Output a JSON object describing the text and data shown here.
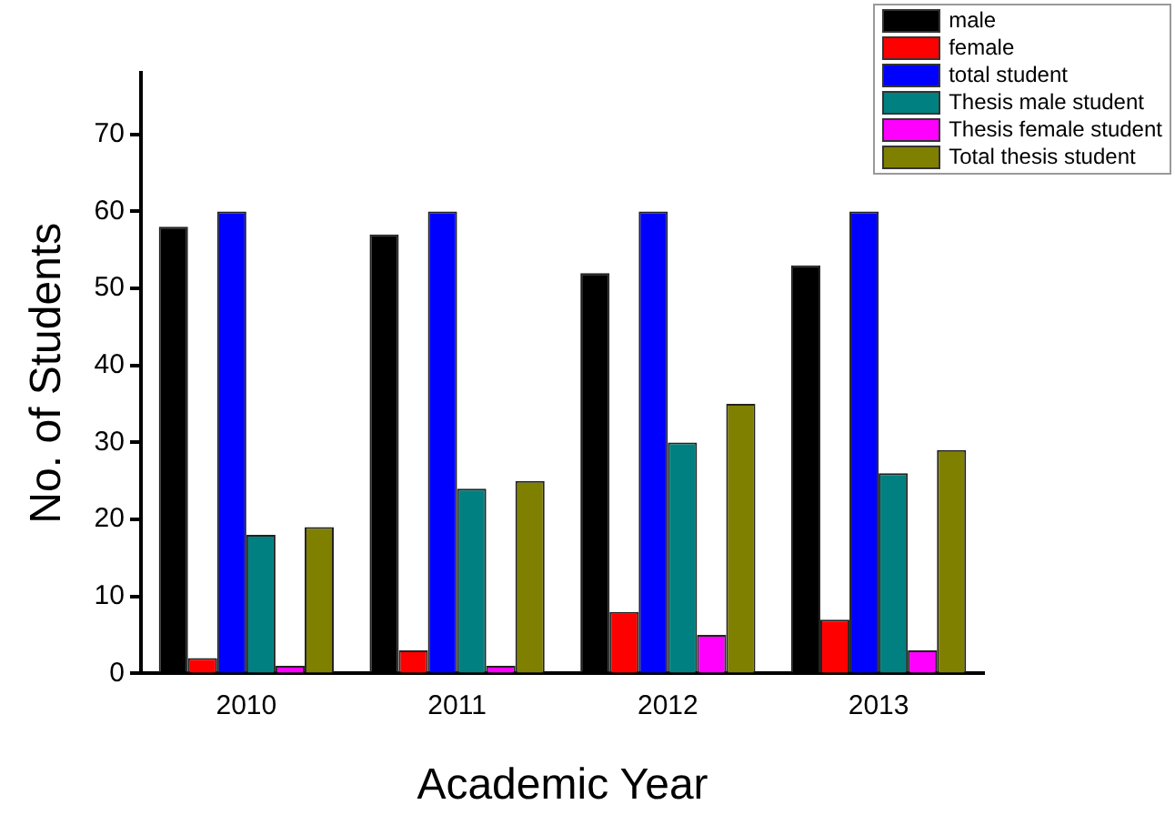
{
  "chart_data": {
    "type": "bar",
    "xlabel": "Academic Year",
    "ylabel": "No. of Students",
    "categories": [
      "2010",
      "2011",
      "2012",
      "2013"
    ],
    "series": [
      {
        "name": "male",
        "color": "#000000",
        "values": [
          58,
          57,
          52,
          53
        ]
      },
      {
        "name": "female",
        "color": "#ff0000",
        "values": [
          2,
          3,
          8,
          7
        ]
      },
      {
        "name": "total student",
        "color": "#0000ff",
        "values": [
          60,
          60,
          60,
          60
        ]
      },
      {
        "name": "Thesis male student",
        "color": "#008080",
        "values": [
          18,
          24,
          30,
          26
        ]
      },
      {
        "name": "Thesis female student",
        "color": "#ff00ff",
        "values": [
          1,
          1,
          5,
          3
        ]
      },
      {
        "name": "Total thesis student",
        "color": "#808000",
        "values": [
          19,
          25,
          35,
          29
        ]
      }
    ],
    "ylim": [
      0,
      78
    ],
    "yticks": [
      0,
      10,
      20,
      30,
      40,
      50,
      60,
      70
    ],
    "grid": false,
    "legend": "top right"
  }
}
